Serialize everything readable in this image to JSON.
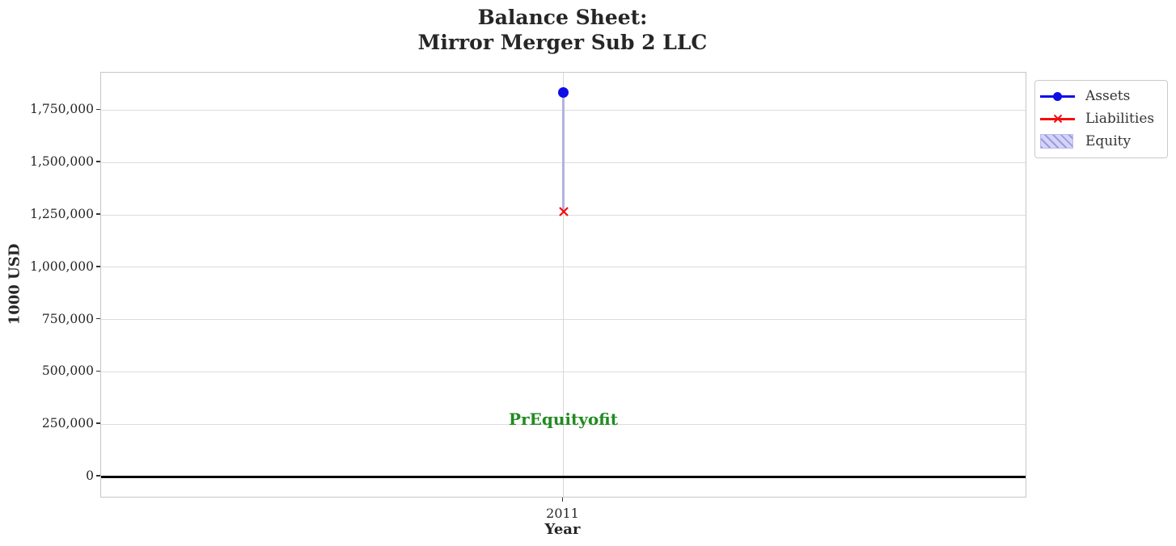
{
  "figure": {
    "title_line1": "Balance Sheet:",
    "title_line2": "Mirror Merger Sub 2 LLC"
  },
  "axes": {
    "ylabel": "1000 USD",
    "xlabel": "Year",
    "xtick_label": "2011"
  },
  "legend": {
    "items": [
      {
        "label": "Assets",
        "marker": "circle-on-line"
      },
      {
        "label": "Liabilities",
        "marker": "x-on-line"
      },
      {
        "label": "Equity",
        "marker": "hatched-patch"
      }
    ]
  },
  "annotation": {
    "text": "PrEquityofit"
  },
  "colors": {
    "assets": "#0d0de8",
    "liabilities": "#f50d0d",
    "equity_fill": "#d4d4f7",
    "equity_hatch": "#9a9ae0",
    "equity_edge": "#b9b9ec",
    "equity_bar": "#b2b2e0",
    "annotation_green": "#228B22",
    "zero_line": "#000000",
    "grid": "#dcdcdc",
    "text": "#262626"
  },
  "chart_data": {
    "type": "line",
    "title": "Balance Sheet:\nMirror Merger Sub 2 LLC",
    "xlabel": "Year",
    "ylabel": "1000 USD",
    "x": [
      2011
    ],
    "xlim": [
      2010.5,
      2011.5
    ],
    "ylim": [
      -96000,
      1929000
    ],
    "grid": true,
    "legend_position": "upper right, outside axes",
    "yticks": {
      "values": [
        0,
        250000,
        500000,
        750000,
        1000000,
        1250000,
        1500000,
        1750000
      ],
      "labels": [
        "0",
        "250,000",
        "500,000",
        "750,000",
        "1,000,000",
        "1,250,000",
        "1,500,000",
        "1,750,000"
      ]
    },
    "xticks": {
      "values": [
        2011
      ],
      "labels": [
        "2011"
      ]
    },
    "series": [
      {
        "name": "Assets",
        "type": "line",
        "marker": "circle",
        "color": "#0d0de8",
        "values": [
          1833000
        ]
      },
      {
        "name": "Liabilities",
        "type": "line",
        "marker": "x",
        "color": "#f50d0d",
        "values": [
          1267000
        ]
      },
      {
        "name": "Equity",
        "type": "bar",
        "hatch": "diagonal",
        "color": "#d4d4f7",
        "bottom": [
          1267000
        ],
        "values": [
          566000
        ]
      }
    ],
    "annotations": [
      {
        "text": "PrEquityofit",
        "x": 2011,
        "y": 275000,
        "color": "#228B22"
      }
    ],
    "zero_line": {
      "y": 0,
      "color": "#000000"
    }
  }
}
